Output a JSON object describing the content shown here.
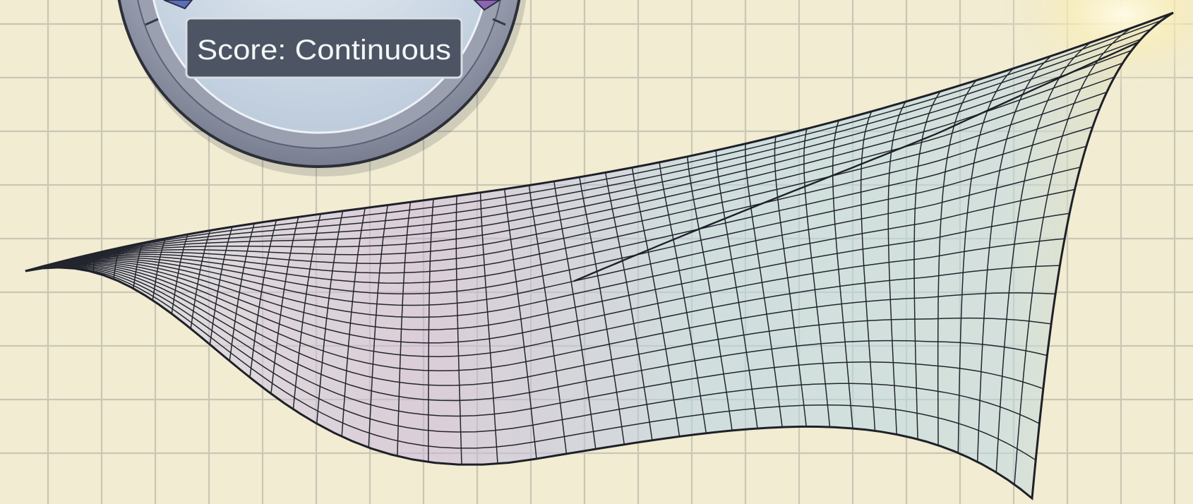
{
  "gauge": {
    "score_label": "Score: Continuous"
  },
  "colors": {
    "paper": "#f1ecd2",
    "grid": "#c9c6b5",
    "gauge_ring": "#8d93a6",
    "gauge_face": "#c8d8e6",
    "label_bg": "#4d5564",
    "surface_blue": "#b9d6e6",
    "surface_violet": "#c8b4dc",
    "surface_glow": "#f6e7b0"
  }
}
